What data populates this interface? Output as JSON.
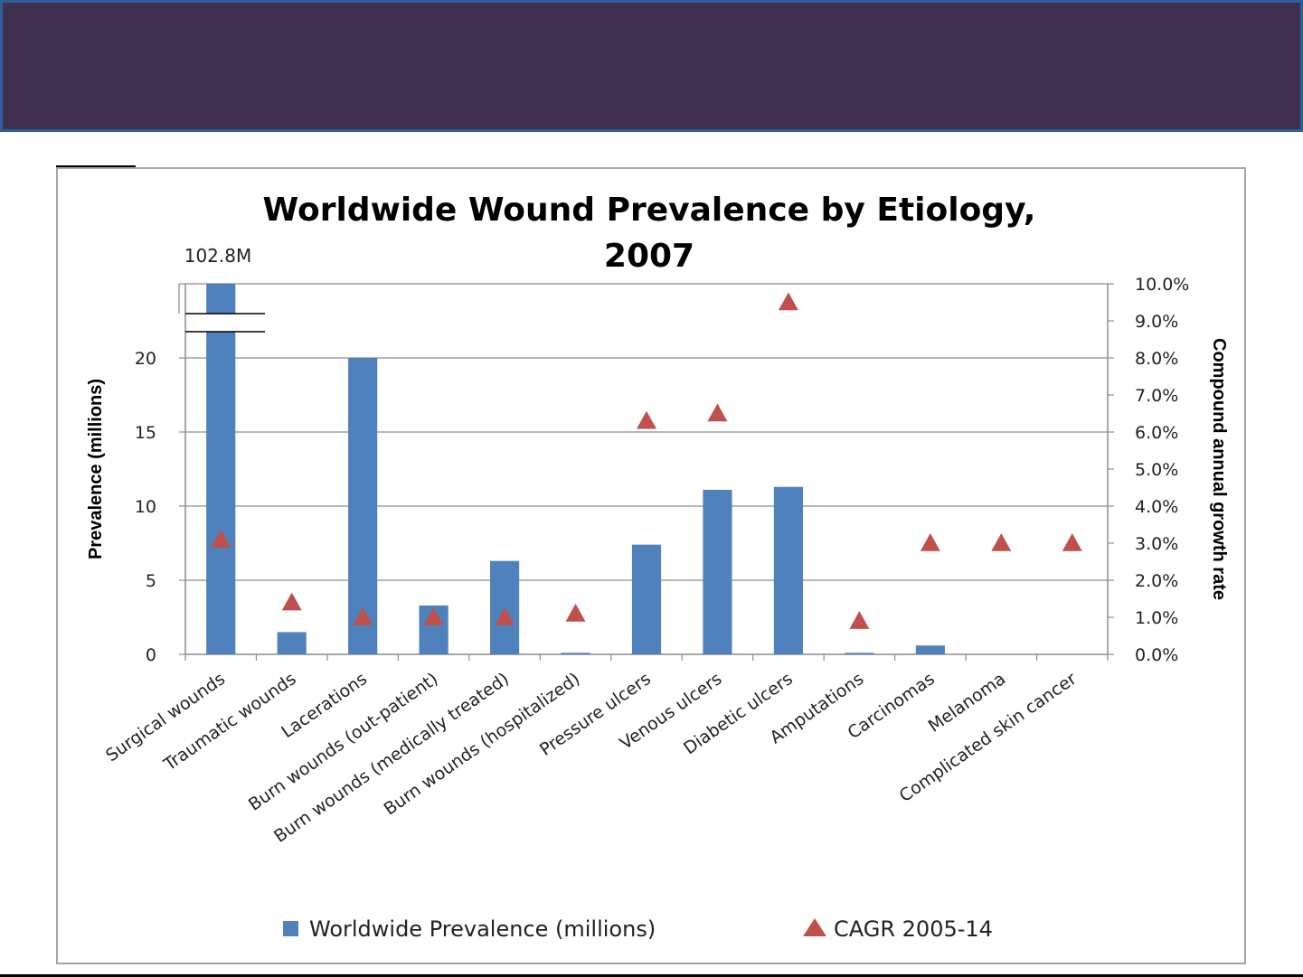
{
  "slide": {
    "banner_color": "#3f304f",
    "banner_border": "#2e5f99"
  },
  "chart_data": {
    "type": "bar",
    "title_line1": "Worldwide Wound Prevalence by Etiology,",
    "title_line2": "2007",
    "categories": [
      "Surgical wounds",
      "Traumatic wounds",
      "Lacerations",
      "Burn wounds (out-patient)",
      "Burn wounds (medically treated)",
      "Burn wounds (hospitalized)",
      "Pressure ulcers",
      "Venous ulcers",
      "Diabetic ulcers",
      "Amputations",
      "Carcinomas",
      "Melanoma",
      "Complicated skin cancer"
    ],
    "series": [
      {
        "name": "Worldwide Prevalence (millions)",
        "kind": "bar",
        "axis": "left",
        "color": "#4f81bd",
        "values": [
          102.8,
          1.5,
          20.0,
          3.3,
          6.3,
          0.1,
          7.4,
          11.1,
          11.3,
          0.1,
          0.6,
          0,
          0
        ]
      },
      {
        "name": "CAGR 2005-14",
        "kind": "marker",
        "marker": "triangle",
        "axis": "right",
        "color": "#c0504d",
        "values": [
          3.1,
          1.4,
          1.0,
          1.0,
          1.0,
          1.1,
          6.3,
          6.5,
          9.5,
          0.9,
          3.0,
          3.0,
          3.0
        ]
      }
    ],
    "ylabel": "Prevalence (millions)",
    "y2label": "Compound annual growth rate",
    "ylim": [
      0,
      25
    ],
    "y_ticks": [
      "0",
      "5",
      "10",
      "15",
      "20"
    ],
    "y2lim": [
      0,
      10
    ],
    "y2_ticks": [
      "0.0%",
      "1.0%",
      "2.0%",
      "3.0%",
      "4.0%",
      "5.0%",
      "6.0%",
      "7.0%",
      "8.0%",
      "9.0%",
      "10.0%"
    ],
    "axis_break": true,
    "annotation": "102.8M",
    "grid": true,
    "legend_position": "bottom"
  }
}
